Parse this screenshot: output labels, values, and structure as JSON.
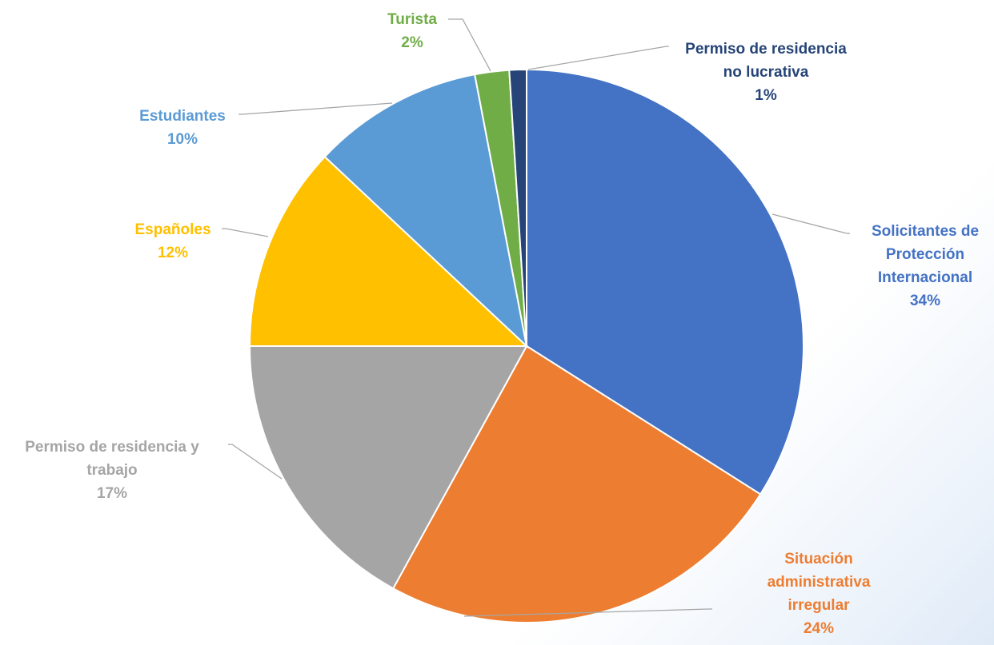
{
  "chart_data": {
    "type": "pie",
    "title": "",
    "slices": [
      {
        "label_lines": [
          "Solicitantes de",
          "Protección",
          "Internacional"
        ],
        "percent_label": "34%",
        "value": 34,
        "color": "#4472C4"
      },
      {
        "label_lines": [
          "Situación",
          "administrativa",
          "irregular"
        ],
        "percent_label": "24%",
        "value": 24,
        "color": "#ED7D31"
      },
      {
        "label_lines": [
          "Permiso de residencia y",
          "trabajo"
        ],
        "percent_label": "17%",
        "value": 17,
        "color": "#A5A5A5"
      },
      {
        "label_lines": [
          "Españoles"
        ],
        "percent_label": "12%",
        "value": 12,
        "color": "#FFC000"
      },
      {
        "label_lines": [
          "Estudiantes"
        ],
        "percent_label": "10%",
        "value": 10,
        "color": "#5B9BD5"
      },
      {
        "label_lines": [
          "Turista"
        ],
        "percent_label": "2%",
        "value": 2,
        "color": "#70AD47"
      },
      {
        "label_lines": [
          "Permiso de residencia",
          "no lucrativa"
        ],
        "percent_label": "1%",
        "value": 1,
        "color": "#264478"
      }
    ],
    "label_colors": [
      "#4472C4",
      "#ED7D31",
      "#A5A5A5",
      "#FFC000",
      "#5B9BD5",
      "#70AD47",
      "#264478"
    ],
    "leader_line_color": "#A6A6A6"
  }
}
